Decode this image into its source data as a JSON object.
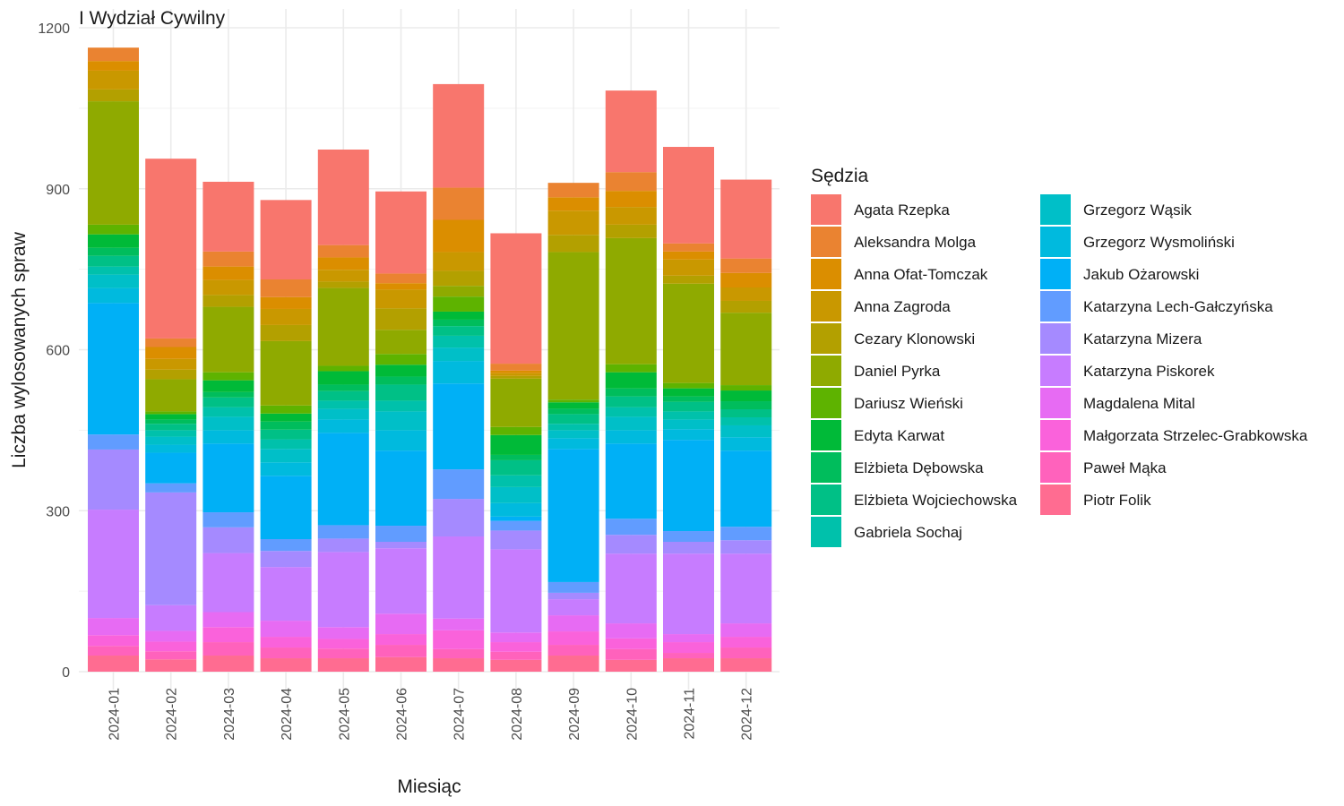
{
  "chart_data": {
    "type": "bar",
    "stacked": true,
    "title": "I Wydział Cywilny",
    "xlabel": "Miesiąc",
    "ylabel": "Liczba wylosowanych spraw",
    "ylim": [
      0,
      1200
    ],
    "yticks": [
      0,
      300,
      600,
      900,
      1200
    ],
    "grid": true,
    "legend_title": "Sędzia",
    "legend_position": "right",
    "categories": [
      "2024-01",
      "2024-02",
      "2024-03",
      "2024-04",
      "2024-05",
      "2024-06",
      "2024-07",
      "2024-08",
      "2024-09",
      "2024-10",
      "2024-11",
      "2024-12"
    ],
    "series": [
      {
        "name": "Agata Rzepka",
        "color": "#F8766D",
        "values": [
          0,
          335,
          130,
          148,
          178,
          153,
          193,
          243,
          0,
          152,
          180,
          147
        ]
      },
      {
        "name": "Aleksandra Molga",
        "color": "#EA8331",
        "values": [
          25,
          16,
          28,
          33,
          23,
          18,
          60,
          13,
          27,
          35,
          15,
          27
        ]
      },
      {
        "name": "Anna Ofat-Tomczak",
        "color": "#DB8E00",
        "values": [
          18,
          22,
          25,
          22,
          23,
          12,
          60,
          5,
          25,
          30,
          15,
          27
        ]
      },
      {
        "name": "Anna Zagroda",
        "color": "#C99800",
        "values": [
          35,
          20,
          28,
          30,
          22,
          35,
          35,
          5,
          45,
          33,
          30,
          25
        ]
      },
      {
        "name": "Cezary Klonowski",
        "color": "#B3A000",
        "values": [
          22,
          18,
          22,
          30,
          12,
          40,
          28,
          5,
          32,
          25,
          15,
          22
        ]
      },
      {
        "name": "Daniel Pyrka",
        "color": "#8FAA00",
        "values": [
          230,
          60,
          122,
          120,
          145,
          45,
          20,
          90,
          275,
          235,
          185,
          135
        ]
      },
      {
        "name": "Dariusz Wieński",
        "color": "#5EB300",
        "values": [
          18,
          5,
          15,
          15,
          10,
          20,
          28,
          15,
          5,
          15,
          10,
          10
        ]
      },
      {
        "name": "Edyta Karwat",
        "color": "#00BA38",
        "values": [
          25,
          10,
          22,
          15,
          25,
          22,
          15,
          37,
          12,
          30,
          15,
          20
        ]
      },
      {
        "name": "Elżbieta Dębowska",
        "color": "#00BD5C",
        "values": [
          15,
          8,
          10,
          15,
          12,
          15,
          12,
          10,
          10,
          15,
          10,
          15
        ]
      },
      {
        "name": "Elżbieta Wojciechowska",
        "color": "#00C086",
        "values": [
          20,
          12,
          18,
          18,
          18,
          30,
          18,
          28,
          18,
          20,
          18,
          15
        ]
      },
      {
        "name": "Gabriela Sochaj",
        "color": "#00C1AB",
        "values": [
          15,
          12,
          18,
          18,
          15,
          20,
          22,
          22,
          12,
          18,
          15,
          15
        ]
      },
      {
        "name": "Grzegorz Wąsik",
        "color": "#00BFC8",
        "values": [
          25,
          15,
          25,
          25,
          20,
          35,
          25,
          30,
          15,
          25,
          18,
          22
        ]
      },
      {
        "name": "Grzegorz Wysmoliński",
        "color": "#00BADE",
        "values": [
          28,
          15,
          25,
          25,
          25,
          38,
          42,
          25,
          20,
          25,
          20,
          25
        ]
      },
      {
        "name": "Jakub Ożarowski",
        "color": "#00B0F6",
        "values": [
          245,
          57,
          128,
          118,
          172,
          140,
          160,
          8,
          248,
          140,
          170,
          142
        ]
      },
      {
        "name": "Katarzyna Lech-Gałczyńska",
        "color": "#619CFF",
        "values": [
          28,
          17,
          28,
          22,
          25,
          30,
          55,
          18,
          20,
          30,
          20,
          25
        ]
      },
      {
        "name": "Katarzyna Mizera",
        "color": "#A58AFF",
        "values": [
          112,
          210,
          48,
          30,
          25,
          12,
          70,
          35,
          12,
          35,
          22,
          25
        ]
      },
      {
        "name": "Katarzyna Piskorek",
        "color": "#C77CFF",
        "values": [
          202,
          48,
          110,
          100,
          140,
          122,
          153,
          155,
          30,
          130,
          150,
          130
        ]
      },
      {
        "name": "Magdalena Mital",
        "color": "#E76BF3",
        "values": [
          32,
          20,
          28,
          30,
          22,
          38,
          22,
          18,
          30,
          28,
          15,
          25
        ]
      },
      {
        "name": "Małgorzata Strzelec-Grabkowska",
        "color": "#FA62DB",
        "values": [
          20,
          18,
          28,
          20,
          18,
          20,
          35,
          18,
          25,
          20,
          20,
          20
        ]
      },
      {
        "name": "Paweł Mąka",
        "color": "#FF62BC",
        "values": [
          18,
          15,
          25,
          20,
          18,
          23,
          17,
          15,
          20,
          20,
          10,
          20
        ]
      },
      {
        "name": "Piotr Folik",
        "color": "#FF6C91",
        "values": [
          30,
          23,
          30,
          25,
          25,
          27,
          25,
          22,
          30,
          22,
          25,
          25
        ]
      }
    ]
  }
}
